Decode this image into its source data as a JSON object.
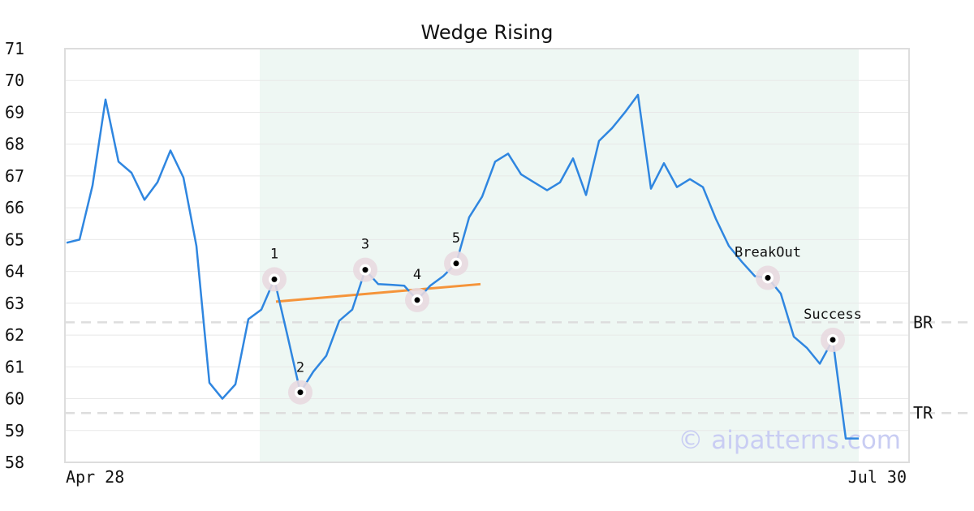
{
  "chart_data": {
    "type": "line",
    "title": "Wedge Rising",
    "xlabel": "",
    "ylabel": "",
    "x_tick_labels": [
      "Apr 28",
      "Jul 30"
    ],
    "ylim": [
      58,
      71
    ],
    "yticks": [
      58,
      59,
      60,
      61,
      62,
      63,
      64,
      65,
      66,
      67,
      68,
      69,
      70,
      71
    ],
    "grid": "horizontal",
    "colors": {
      "price": "#2f86e0",
      "trendline": "#f5943a",
      "highlight": "#eef7f3",
      "marker_halo": "#e8d9e0",
      "reference": "#dddddd"
    },
    "series": [
      {
        "values": [
          64.9,
          65.0,
          66.7,
          69.4,
          67.45,
          67.1,
          66.25,
          66.8,
          67.8,
          66.95,
          64.8,
          60.5,
          60.0,
          60.45,
          62.5,
          62.8,
          63.75,
          62.0,
          60.2,
          60.85,
          61.35,
          62.45,
          62.8,
          64.05,
          63.6,
          63.58,
          63.55,
          63.1,
          63.55,
          63.85,
          64.25,
          65.7,
          66.35,
          67.45,
          67.7,
          67.05,
          66.8,
          66.55,
          66.8,
          67.55,
          66.4,
          68.1,
          68.5,
          69.0,
          69.55,
          66.6,
          67.4,
          66.65,
          66.9,
          66.65,
          65.65,
          64.8,
          64.3,
          63.85,
          63.8,
          63.3,
          61.95,
          61.6,
          61.1,
          61.85,
          58.75,
          58.75
        ]
      }
    ],
    "highlight_range": [
      14,
      61
    ],
    "trendline": {
      "from": [
        16,
        63.05
      ],
      "to": [
        31,
        63.6
      ]
    },
    "points": [
      {
        "label": "1",
        "index": 16,
        "value": 63.75
      },
      {
        "label": "2",
        "index": 18,
        "value": 60.2
      },
      {
        "label": "3",
        "index": 23,
        "value": 64.05
      },
      {
        "label": "4",
        "index": 27,
        "value": 63.1
      },
      {
        "label": "5",
        "index": 30,
        "value": 64.25
      },
      {
        "label": "BreakOut",
        "index": 54,
        "value": 63.8
      },
      {
        "label": "Success",
        "index": 59,
        "value": 61.85
      }
    ],
    "reference_lines": [
      {
        "label": "BR",
        "value": 62.4
      },
      {
        "label": "TR",
        "value": 59.55
      }
    ],
    "watermark": "© aipatterns.com"
  }
}
